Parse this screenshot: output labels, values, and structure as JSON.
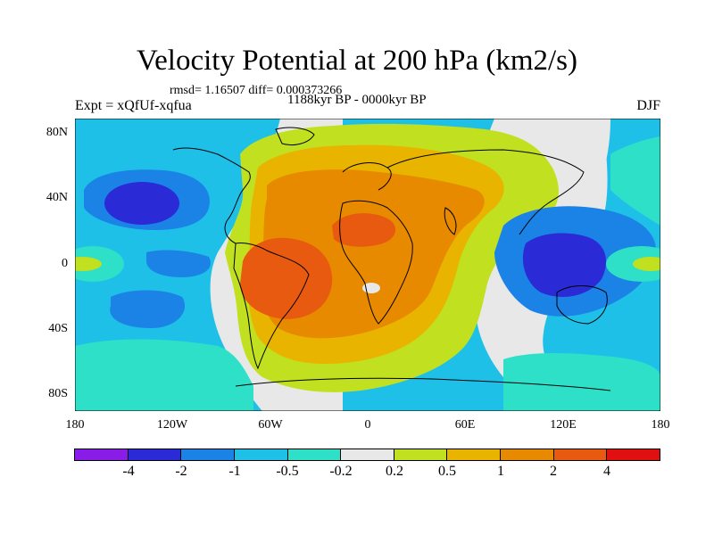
{
  "title": "Velocity Potential at 200 hPa (km2/s)",
  "stats": "rmsd= 1.16507 diff= 0.000373266",
  "experiment": "Expt = xQfUf-xqfua",
  "period": "1188kyr BP - 0000kyr BP",
  "season": "DJF",
  "map": {
    "lat_labels": [
      "80N",
      "40N",
      "0",
      "40S",
      "80S"
    ],
    "lon_labels": [
      "180",
      "120W",
      "60W",
      "0",
      "60E",
      "120E",
      "180"
    ]
  },
  "colorbar": {
    "colors": [
      "#8a1ce8",
      "#2a2ad6",
      "#1b82e6",
      "#1ec0e8",
      "#2ee0c8",
      "#e8e8e8",
      "#c0e020",
      "#e8b400",
      "#e88a00",
      "#e85a10",
      "#e01010"
    ],
    "labels": [
      "-4",
      "-2",
      "-1",
      "-0.5",
      "-0.2",
      "0.2",
      "0.5",
      "1",
      "2",
      "4"
    ]
  },
  "palette": {
    "blue_dark": "#2a2ad6",
    "blue_mid": "#1b82e6",
    "blue_light": "#1ec0e8",
    "teal": "#2ee0c8",
    "neutral": "#e8e8e8",
    "yellow_green": "#c0e020",
    "yellow": "#e8b400",
    "orange": "#e88a00",
    "orange_red": "#e85a10"
  }
}
